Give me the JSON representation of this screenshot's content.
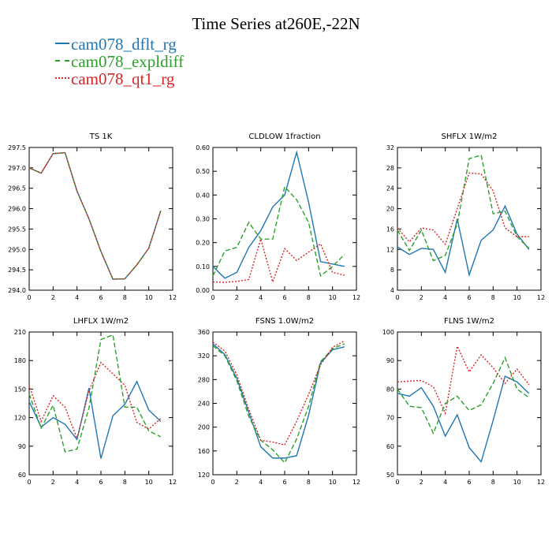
{
  "title": "Time Series at260E,-22N",
  "legend": [
    {
      "name": "cam078_dflt_rg",
      "color": "#1f77b4",
      "style": "solid"
    },
    {
      "name": "cam078_expldiff",
      "color": "#2ca02c",
      "style": "dash"
    },
    {
      "name": "cam078_qt1_rg",
      "color": "#d62728",
      "style": "dot"
    }
  ],
  "chart_data": [
    {
      "type": "line",
      "title": "TS    1K",
      "x": [
        0,
        1,
        2,
        3,
        4,
        5,
        6,
        7,
        8,
        9,
        10,
        11
      ],
      "xlim": [
        0,
        12
      ],
      "xticks": [
        0,
        2,
        4,
        6,
        8,
        10,
        12
      ],
      "xtick_labels": [
        "0",
        "2",
        "4",
        "6",
        "8",
        "10",
        "12"
      ],
      "ylim": [
        294.0,
        297.5
      ],
      "yticks": [
        294.0,
        294.5,
        295.0,
        295.5,
        296.0,
        296.5,
        297.0,
        297.5
      ],
      "ytick_labels": [
        "294.0",
        "294.5",
        "295.0",
        "295.5",
        "296.0",
        "296.5",
        "297.0",
        "297.5"
      ],
      "series": [
        {
          "name": "cam078_dflt_rg",
          "values": [
            297.0,
            296.87,
            297.35,
            297.37,
            296.43,
            295.75,
            294.95,
            294.27,
            294.28,
            294.62,
            295.03,
            295.95
          ]
        },
        {
          "name": "cam078_expldiff",
          "values": [
            297.0,
            296.87,
            297.35,
            297.37,
            296.43,
            295.75,
            294.95,
            294.27,
            294.28,
            294.62,
            295.03,
            295.95
          ]
        },
        {
          "name": "cam078_qt1_rg",
          "values": [
            297.0,
            296.87,
            297.35,
            297.37,
            296.43,
            295.75,
            294.95,
            294.27,
            294.28,
            294.62,
            295.03,
            295.95
          ]
        }
      ]
    },
    {
      "type": "line",
      "title": "CLDLOW    1fraction",
      "x": [
        0,
        1,
        2,
        3,
        4,
        5,
        6,
        7,
        8,
        9,
        10,
        11
      ],
      "xlim": [
        0,
        12
      ],
      "xticks": [
        0,
        2,
        4,
        6,
        8,
        10,
        12
      ],
      "xtick_labels": [
        "0",
        "2",
        "4",
        "6",
        "8",
        "10",
        "12"
      ],
      "ylim": [
        0.0,
        0.6
      ],
      "yticks": [
        0.0,
        0.1,
        0.2,
        0.3,
        0.4,
        0.5,
        0.6
      ],
      "ytick_labels": [
        "0.00",
        "0.10",
        "0.20",
        "0.30",
        "0.40",
        "0.50",
        "0.60"
      ],
      "series": [
        {
          "name": "cam078_dflt_rg",
          "values": [
            0.1,
            0.05,
            0.075,
            0.18,
            0.25,
            0.35,
            0.4,
            0.58,
            0.37,
            0.12,
            0.11,
            0.1
          ]
        },
        {
          "name": "cam078_expldiff",
          "values": [
            0.06,
            0.165,
            0.18,
            0.285,
            0.215,
            0.215,
            0.435,
            0.38,
            0.285,
            0.06,
            0.1,
            0.15
          ]
        },
        {
          "name": "cam078_qt1_rg",
          "values": [
            0.035,
            0.033,
            0.037,
            0.045,
            0.215,
            0.035,
            0.175,
            0.125,
            0.16,
            0.195,
            0.075,
            0.063
          ]
        }
      ]
    },
    {
      "type": "line",
      "title": "SHFLX    1W/m2",
      "x": [
        0,
        1,
        2,
        3,
        4,
        5,
        6,
        7,
        8,
        9,
        10,
        11
      ],
      "xlim": [
        0,
        12
      ],
      "xticks": [
        0,
        2,
        4,
        6,
        8,
        10,
        12
      ],
      "xtick_labels": [
        "0",
        "2",
        "4",
        "6",
        "8",
        "10",
        "12"
      ],
      "ylim": [
        4,
        32
      ],
      "yticks": [
        4,
        8,
        12,
        16,
        20,
        24,
        28,
        32
      ],
      "ytick_labels": [
        "4",
        "8",
        "12",
        "16",
        "20",
        "24",
        "28",
        "32"
      ],
      "series": [
        {
          "name": "cam078_dflt_rg",
          "values": [
            12.5,
            11.0,
            12.2,
            12.0,
            7.5,
            18.0,
            7.0,
            13.8,
            15.8,
            20.5,
            15.0,
            12.0
          ]
        },
        {
          "name": "cam078_expldiff",
          "values": [
            15.8,
            11.8,
            15.8,
            9.8,
            10.8,
            17.0,
            29.8,
            30.5,
            19.0,
            19.5,
            14.5,
            12.2
          ]
        },
        {
          "name": "cam078_qt1_rg",
          "values": [
            16.2,
            13.5,
            16.2,
            15.8,
            13.0,
            20.0,
            27.0,
            26.8,
            23.5,
            16.2,
            14.5,
            14.5
          ]
        }
      ]
    },
    {
      "type": "line",
      "title": "LHFLX    1W/m2",
      "x": [
        0,
        1,
        2,
        3,
        4,
        5,
        6,
        7,
        8,
        9,
        10,
        11
      ],
      "xlim": [
        0,
        12
      ],
      "xticks": [
        0,
        2,
        4,
        6,
        8,
        10,
        12
      ],
      "xtick_labels": [
        "0",
        "2",
        "4",
        "6",
        "8",
        "10",
        "12"
      ],
      "ylim": [
        60,
        210
      ],
      "yticks": [
        60,
        90,
        120,
        150,
        180,
        210
      ],
      "ytick_labels": [
        "60",
        "90",
        "120",
        "150",
        "180",
        "210"
      ],
      "series": [
        {
          "name": "cam078_dflt_rg",
          "values": [
            137,
            110,
            120,
            113,
            97,
            151,
            77,
            122,
            134,
            158,
            128,
            116
          ]
        },
        {
          "name": "cam078_expldiff",
          "values": [
            145,
            109,
            133,
            84,
            87,
            130,
            202,
            207,
            131,
            131,
            106,
            100
          ]
        },
        {
          "name": "cam078_qt1_rg",
          "values": [
            154,
            116,
            143,
            131,
            98,
            148,
            178,
            166,
            154,
            115,
            108,
            119
          ]
        }
      ]
    },
    {
      "type": "line",
      "title": "FSNS    1.0W/m2",
      "x": [
        0,
        1,
        2,
        3,
        4,
        5,
        6,
        7,
        8,
        9,
        10,
        11
      ],
      "xlim": [
        0,
        12
      ],
      "xticks": [
        0,
        2,
        4,
        6,
        8,
        10,
        12
      ],
      "xtick_labels": [
        "0",
        "2",
        "4",
        "6",
        "8",
        "10",
        "12"
      ],
      "ylim": [
        120,
        360
      ],
      "yticks": [
        120,
        160,
        200,
        240,
        280,
        320,
        360
      ],
      "ytick_labels": [
        "120",
        "160",
        "200",
        "240",
        "280",
        "320",
        "360"
      ],
      "series": [
        {
          "name": "cam078_dflt_rg",
          "values": [
            340,
            322,
            282,
            225,
            167,
            148,
            148,
            152,
            220,
            308,
            330,
            335
          ]
        },
        {
          "name": "cam078_expldiff",
          "values": [
            337,
            320,
            278,
            218,
            178,
            162,
            140,
            180,
            235,
            310,
            332,
            340
          ]
        },
        {
          "name": "cam078_qt1_rg",
          "values": [
            343,
            328,
            288,
            230,
            178,
            175,
            170,
            210,
            255,
            305,
            334,
            345
          ]
        }
      ]
    },
    {
      "type": "line",
      "title": "FLNS    1W/m2",
      "x": [
        0,
        1,
        2,
        3,
        4,
        5,
        6,
        7,
        8,
        9,
        10,
        11
      ],
      "xlim": [
        0,
        12
      ],
      "xticks": [
        0,
        2,
        4,
        6,
        8,
        10,
        12
      ],
      "xtick_labels": [
        "0",
        "2",
        "4",
        "6",
        "8",
        "10",
        "12"
      ],
      "ylim": [
        50,
        100
      ],
      "yticks": [
        50,
        60,
        70,
        80,
        90,
        100
      ],
      "ytick_labels": [
        "50",
        "60",
        "70",
        "80",
        "90",
        "100"
      ],
      "series": [
        {
          "name": "cam078_dflt_rg",
          "values": [
            78.5,
            77.5,
            80.5,
            74,
            63.5,
            71,
            59.5,
            54.5,
            69,
            84.5,
            82.5,
            78.5
          ]
        },
        {
          "name": "cam078_expldiff",
          "values": [
            80,
            74,
            73.5,
            64.5,
            75,
            77.5,
            72.5,
            74.5,
            82,
            91,
            80,
            77
          ]
        },
        {
          "name": "cam078_qt1_rg",
          "values": [
            82.5,
            82.8,
            83,
            80.8,
            71.5,
            95,
            86,
            92,
            87.5,
            82,
            87,
            81.5
          ]
        }
      ]
    }
  ]
}
